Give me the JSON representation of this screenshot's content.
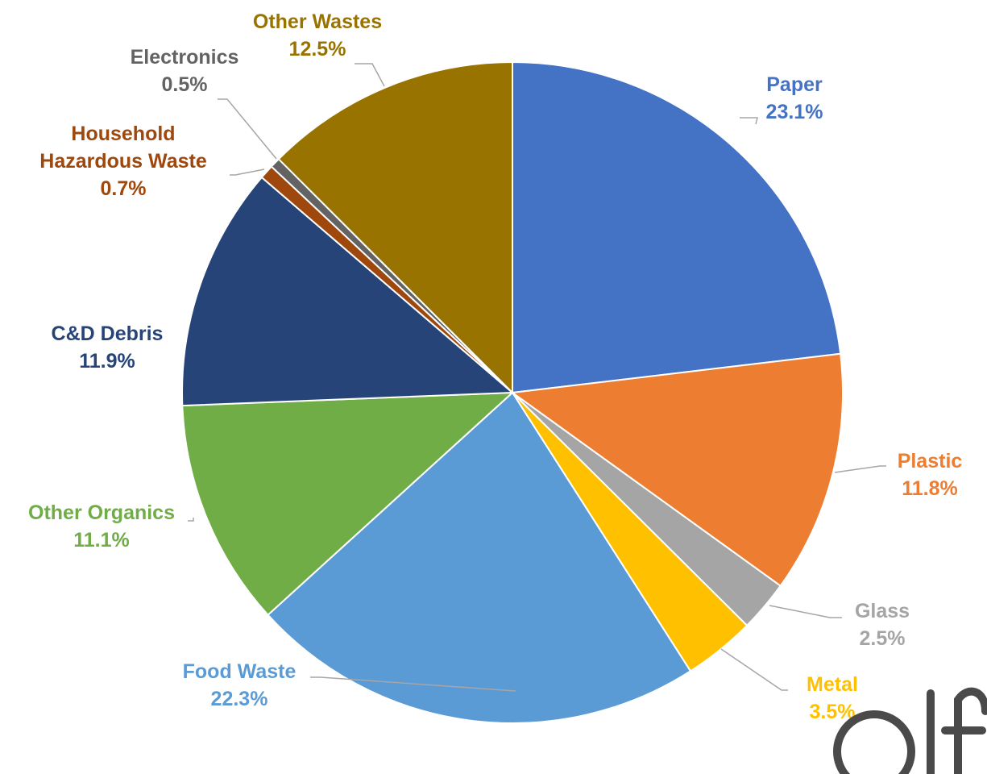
{
  "chart_data": {
    "type": "pie",
    "title": "",
    "categories": [
      "Paper",
      "Plastic",
      "Glass",
      "Metal",
      "Food Waste",
      "Other Organics",
      "C&D Debris",
      "Household Hazardous Waste",
      "Electronics",
      "Other Wastes"
    ],
    "values": [
      23.1,
      11.8,
      2.5,
      3.5,
      22.3,
      11.1,
      11.9,
      0.7,
      0.5,
      12.5
    ],
    "value_labels": [
      "23.1%",
      "11.8%",
      "2.5%",
      "3.5%",
      "22.3%",
      "11.1%",
      "11.9%",
      "0.7%",
      "0.5%",
      "12.5%"
    ],
    "colors": [
      "#4472C4",
      "#ED7D31",
      "#A5A5A5",
      "#FFC000",
      "#5B9BD5",
      "#70AD47",
      "#264478",
      "#9E480E",
      "#636363",
      "#997300"
    ],
    "start_angle_deg": 0,
    "direction": "clockwise",
    "legend": "none",
    "data_labels": "outside with leader lines"
  }
}
